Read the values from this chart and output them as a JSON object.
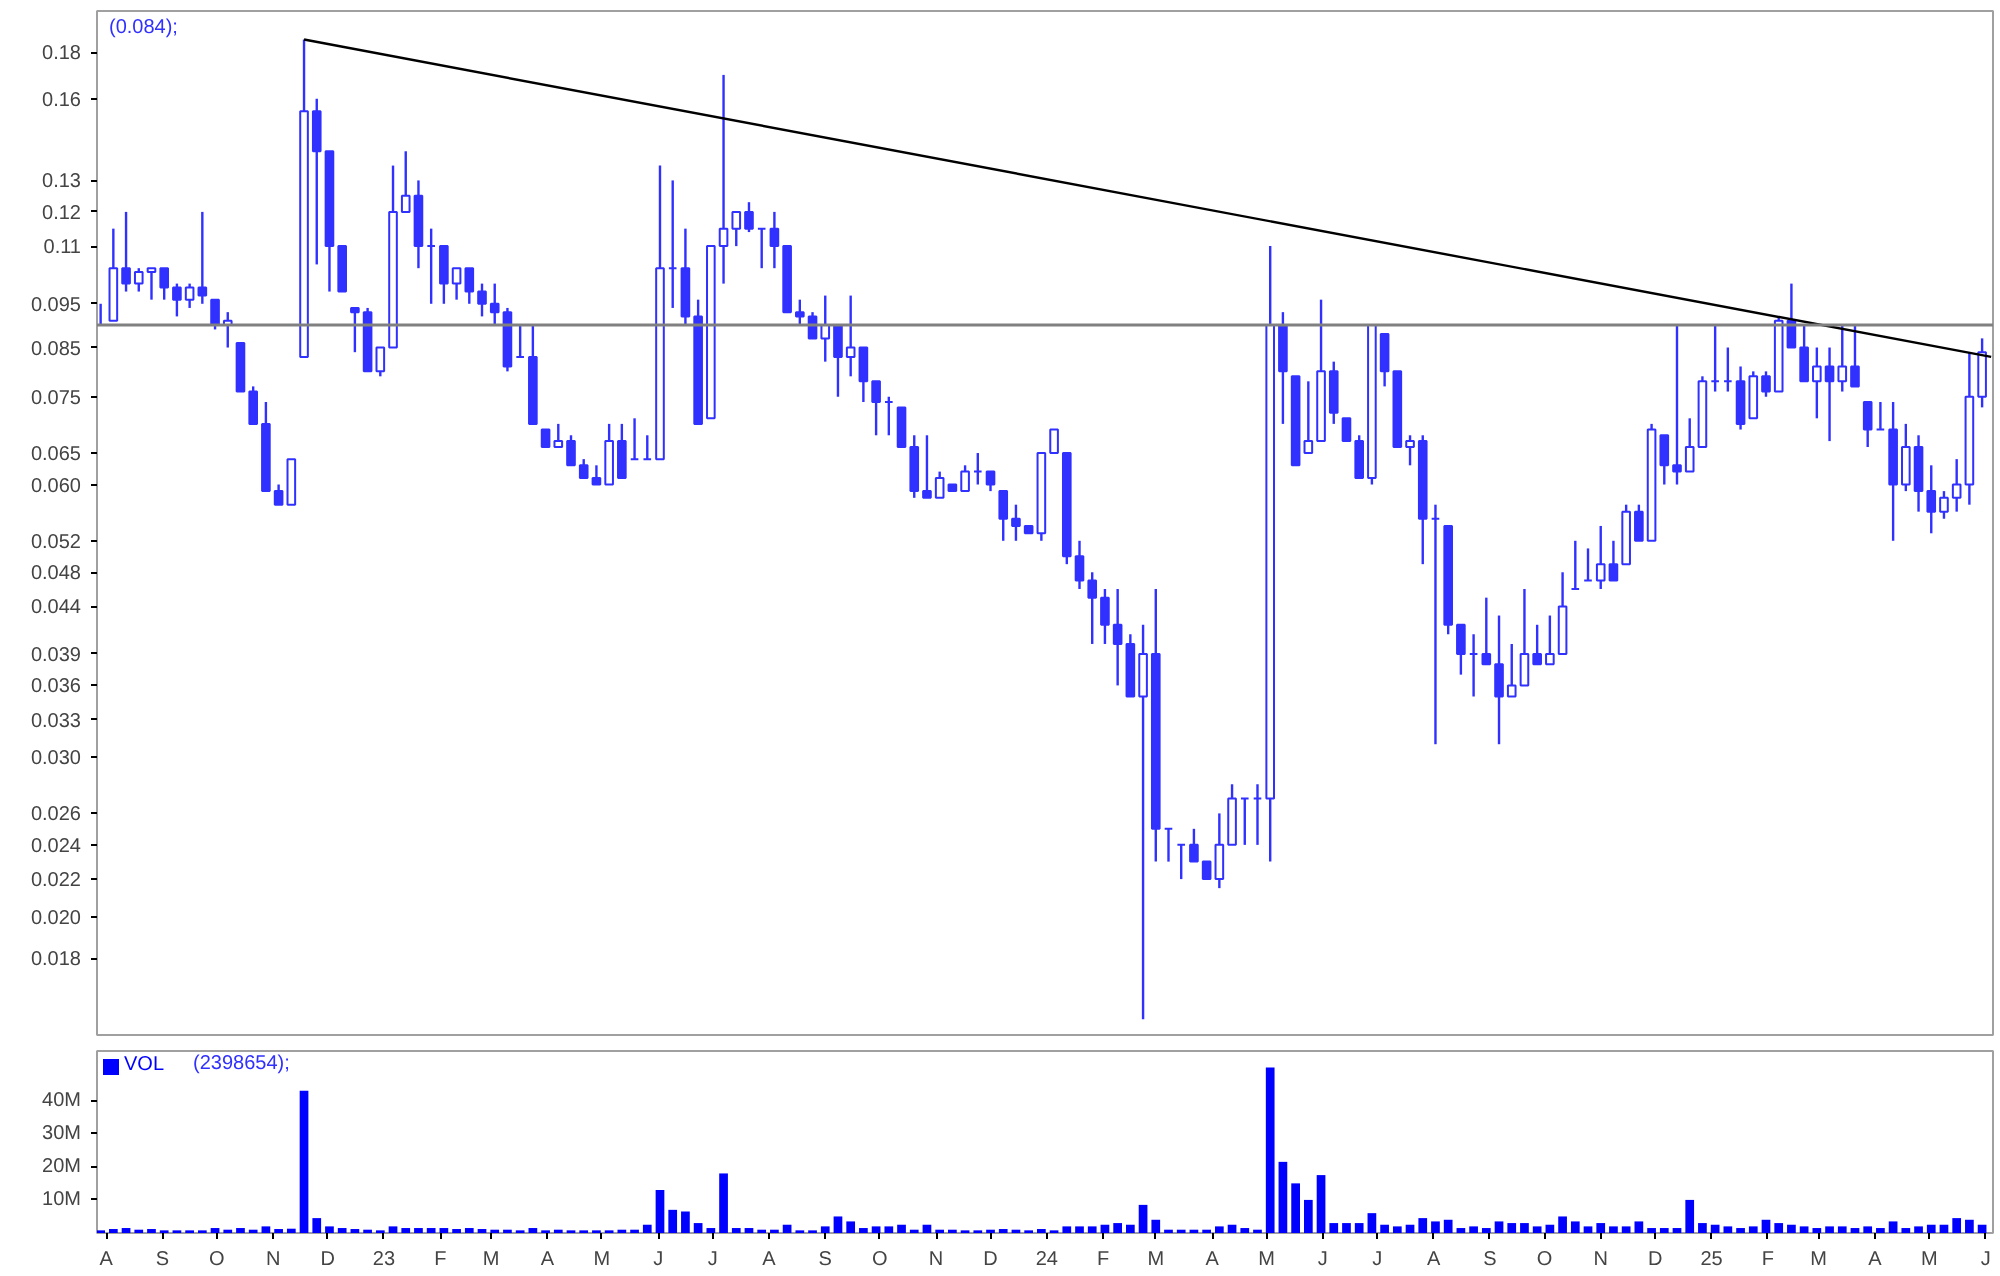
{
  "chart_data": [
    {
      "type": "candlestick",
      "color": "#3030ff",
      "log": "y",
      "tick_labels": "y",
      "annotations": [
        "(0.084);"
      ],
      "x": [
        "2022-07-29",
        "2022-08-05",
        "2022-08-12",
        "2022-08-19",
        "2022-08-26",
        "2022-09-02",
        "2022-09-09",
        "2022-09-16",
        "2022-09-23",
        "2022-09-30",
        "2022-10-07",
        "2022-10-14",
        "2022-10-21",
        "2022-10-28",
        "2022-11-04",
        "2022-11-11",
        "2022-11-18",
        "2022-11-25",
        "2022-12-02",
        "2022-12-09",
        "2022-12-16",
        "2022-12-23",
        "2022-12-30",
        "2023-01-06",
        "2023-01-13",
        "2023-01-20",
        "2023-01-27",
        "2023-02-03",
        "2023-02-10",
        "2023-02-17",
        "2023-02-24",
        "2023-03-03",
        "2023-03-10",
        "2023-03-17",
        "2023-03-24",
        "2023-03-31",
        "2023-04-07",
        "2023-04-14",
        "2023-04-21",
        "2023-04-28",
        "2023-05-05",
        "2023-05-12",
        "2023-05-19",
        "2023-05-26",
        "2023-06-02",
        "2023-06-09",
        "2023-06-16",
        "2023-06-23",
        "2023-06-30",
        "2023-07-07",
        "2023-07-14",
        "2023-07-21",
        "2023-07-28",
        "2023-08-04",
        "2023-08-11",
        "2023-08-18",
        "2023-08-25",
        "2023-09-01",
        "2023-09-08",
        "2023-09-15",
        "2023-09-22",
        "2023-09-29",
        "2023-10-06",
        "2023-10-13",
        "2023-10-20",
        "2023-10-27",
        "2023-11-03",
        "2023-11-10",
        "2023-11-17",
        "2023-11-24",
        "2023-12-01",
        "2023-12-08",
        "2023-12-15",
        "2023-12-22",
        "2023-12-29",
        "2024-01-05",
        "2024-01-12",
        "2024-01-19",
        "2024-01-26",
        "2024-02-02",
        "2024-02-09",
        "2024-02-16",
        "2024-02-23",
        "2024-03-01",
        "2024-03-08",
        "2024-03-15",
        "2024-03-22",
        "2024-03-29",
        "2024-04-05",
        "2024-04-12",
        "2024-04-19",
        "2024-04-26",
        "2024-05-03",
        "2024-05-10",
        "2024-05-17",
        "2024-05-24",
        "2024-05-31",
        "2024-06-07",
        "2024-06-14",
        "2024-06-21",
        "2024-06-28",
        "2024-07-05",
        "2024-07-12",
        "2024-07-19",
        "2024-07-26",
        "2024-08-02",
        "2024-08-09",
        "2024-08-16",
        "2024-08-23",
        "2024-08-30",
        "2024-09-06",
        "2024-09-13",
        "2024-09-20",
        "2024-09-27",
        "2024-10-04",
        "2024-10-11",
        "2024-10-18",
        "2024-10-25",
        "2024-11-01",
        "2024-11-08",
        "2024-11-15",
        "2024-11-22",
        "2024-11-29",
        "2024-12-06",
        "2024-12-13",
        "2024-12-20",
        "2024-12-27",
        "2025-01-03",
        "2025-01-10",
        "2025-01-17",
        "2025-01-24",
        "2025-01-31",
        "2025-02-07",
        "2025-02-14",
        "2025-02-21",
        "2025-02-28",
        "2025-03-07",
        "2025-03-14",
        "2025-03-21",
        "2025-03-28",
        "2025-04-04",
        "2025-04-11",
        "2025-04-18",
        "2025-04-25",
        "2025-05-02",
        "2025-05-09",
        "2025-05-16",
        "2025-05-23",
        "2025-05-30"
      ],
      "ohlc": [
        [
          0.09,
          0.095,
          0.09,
          0.09
        ],
        [
          0.091,
          0.115,
          0.091,
          0.104
        ],
        [
          0.104,
          0.12,
          0.098,
          0.1
        ],
        [
          0.1,
          0.104,
          0.098,
          0.103
        ],
        [
          0.103,
          0.104,
          0.096,
          0.104
        ],
        [
          0.104,
          0.104,
          0.096,
          0.099
        ],
        [
          0.099,
          0.1,
          0.092,
          0.096
        ],
        [
          0.096,
          0.1,
          0.094,
          0.099
        ],
        [
          0.099,
          0.12,
          0.095,
          0.097
        ],
        [
          0.096,
          0.096,
          0.089,
          0.09
        ],
        [
          0.09,
          0.093,
          0.085,
          0.091
        ],
        [
          0.086,
          0.086,
          0.076,
          0.076
        ],
        [
          0.076,
          0.077,
          0.07,
          0.07
        ],
        [
          0.07,
          0.074,
          0.059,
          0.059
        ],
        [
          0.059,
          0.06,
          0.057,
          0.057
        ],
        [
          0.057,
          0.064,
          0.057,
          0.064
        ],
        [
          0.083,
          0.186,
          0.083,
          0.155
        ],
        [
          0.155,
          0.16,
          0.105,
          0.14
        ],
        [
          0.14,
          0.14,
          0.098,
          0.11
        ],
        [
          0.11,
          0.11,
          0.098,
          0.098
        ],
        [
          0.094,
          0.094,
          0.084,
          0.093
        ],
        [
          0.093,
          0.094,
          0.08,
          0.08
        ],
        [
          0.08,
          0.085,
          0.079,
          0.085
        ],
        [
          0.085,
          0.135,
          0.085,
          0.12
        ],
        [
          0.12,
          0.14,
          0.12,
          0.125
        ],
        [
          0.125,
          0.13,
          0.104,
          0.11
        ],
        [
          0.11,
          0.115,
          0.095,
          0.11
        ],
        [
          0.11,
          0.11,
          0.095,
          0.1
        ],
        [
          0.1,
          0.104,
          0.096,
          0.104
        ],
        [
          0.104,
          0.104,
          0.095,
          0.098
        ],
        [
          0.098,
          0.1,
          0.092,
          0.095
        ],
        [
          0.095,
          0.1,
          0.09,
          0.093
        ],
        [
          0.093,
          0.094,
          0.08,
          0.081
        ],
        [
          0.083,
          0.09,
          0.083,
          0.083
        ],
        [
          0.083,
          0.09,
          0.07,
          0.07
        ],
        [
          0.069,
          0.069,
          0.066,
          0.066
        ],
        [
          0.066,
          0.07,
          0.066,
          0.067
        ],
        [
          0.067,
          0.068,
          0.063,
          0.063
        ],
        [
          0.063,
          0.064,
          0.061,
          0.061
        ],
        [
          0.061,
          0.063,
          0.06,
          0.06
        ],
        [
          0.06,
          0.07,
          0.06,
          0.067
        ],
        [
          0.067,
          0.07,
          0.061,
          0.061
        ],
        [
          0.064,
          0.071,
          0.064,
          0.064
        ],
        [
          0.064,
          0.068,
          0.064,
          0.064
        ],
        [
          0.064,
          0.135,
          0.064,
          0.104
        ],
        [
          0.104,
          0.13,
          0.094,
          0.104
        ],
        [
          0.104,
          0.115,
          0.09,
          0.092
        ],
        [
          0.092,
          0.096,
          0.07,
          0.07
        ],
        [
          0.071,
          0.11,
          0.071,
          0.11
        ],
        [
          0.11,
          0.17,
          0.1,
          0.115
        ],
        [
          0.115,
          0.12,
          0.11,
          0.12
        ],
        [
          0.12,
          0.123,
          0.114,
          0.115
        ],
        [
          0.115,
          0.115,
          0.104,
          0.115
        ],
        [
          0.115,
          0.12,
          0.104,
          0.11
        ],
        [
          0.11,
          0.11,
          0.093,
          0.093
        ],
        [
          0.093,
          0.096,
          0.09,
          0.092
        ],
        [
          0.092,
          0.093,
          0.087,
          0.087
        ],
        [
          0.087,
          0.097,
          0.082,
          0.09
        ],
        [
          0.09,
          0.09,
          0.075,
          0.083
        ],
        [
          0.083,
          0.097,
          0.079,
          0.085
        ],
        [
          0.085,
          0.085,
          0.074,
          0.078
        ],
        [
          0.078,
          0.078,
          0.068,
          0.074
        ],
        [
          0.074,
          0.075,
          0.068,
          0.074
        ],
        [
          0.073,
          0.073,
          0.066,
          0.066
        ],
        [
          0.066,
          0.068,
          0.058,
          0.059
        ],
        [
          0.059,
          0.068,
          0.058,
          0.058
        ],
        [
          0.058,
          0.062,
          0.058,
          0.061
        ],
        [
          0.06,
          0.06,
          0.059,
          0.059
        ],
        [
          0.059,
          0.063,
          0.059,
          0.062
        ],
        [
          0.062,
          0.065,
          0.06,
          0.062
        ],
        [
          0.062,
          0.062,
          0.059,
          0.06
        ],
        [
          0.059,
          0.059,
          0.052,
          0.055
        ],
        [
          0.055,
          0.057,
          0.052,
          0.054
        ],
        [
          0.054,
          0.054,
          0.053,
          0.053
        ],
        [
          0.053,
          0.065,
          0.052,
          0.065
        ],
        [
          0.065,
          0.069,
          0.065,
          0.069
        ],
        [
          0.065,
          0.065,
          0.049,
          0.05
        ],
        [
          0.05,
          0.052,
          0.046,
          0.047
        ],
        [
          0.047,
          0.048,
          0.04,
          0.045
        ],
        [
          0.045,
          0.046,
          0.04,
          0.042
        ],
        [
          0.042,
          0.046,
          0.036,
          0.04
        ],
        [
          0.04,
          0.041,
          0.035,
          0.035
        ],
        [
          0.035,
          0.042,
          0.0154,
          0.039
        ],
        [
          0.039,
          0.046,
          0.023,
          0.025
        ],
        [
          0.025,
          0.025,
          0.023,
          0.025
        ],
        [
          0.024,
          0.024,
          0.022,
          0.024
        ],
        [
          0.024,
          0.025,
          0.023,
          0.023
        ],
        [
          0.023,
          0.023,
          0.022,
          0.022
        ],
        [
          0.022,
          0.026,
          0.0215,
          0.024
        ],
        [
          0.024,
          0.028,
          0.024,
          0.027
        ],
        [
          0.027,
          0.027,
          0.024,
          0.027
        ],
        [
          0.027,
          0.028,
          0.024,
          0.027
        ],
        [
          0.027,
          0.11,
          0.023,
          0.09
        ],
        [
          0.09,
          0.093,
          0.07,
          0.08
        ],
        [
          0.079,
          0.079,
          0.063,
          0.063
        ],
        [
          0.065,
          0.078,
          0.065,
          0.067
        ],
        [
          0.067,
          0.096,
          0.067,
          0.08
        ],
        [
          0.08,
          0.082,
          0.07,
          0.072
        ],
        [
          0.071,
          0.071,
          0.067,
          0.067
        ],
        [
          0.067,
          0.068,
          0.061,
          0.061
        ],
        [
          0.061,
          0.09,
          0.06,
          0.09
        ],
        [
          0.088,
          0.088,
          0.077,
          0.08
        ],
        [
          0.08,
          0.08,
          0.066,
          0.066
        ],
        [
          0.066,
          0.068,
          0.063,
          0.067
        ],
        [
          0.067,
          0.068,
          0.049,
          0.055
        ],
        [
          0.055,
          0.057,
          0.031,
          0.055
        ],
        [
          0.054,
          0.054,
          0.041,
          0.042
        ],
        [
          0.042,
          0.042,
          0.037,
          0.039
        ],
        [
          0.039,
          0.041,
          0.035,
          0.039
        ],
        [
          0.039,
          0.045,
          0.038,
          0.038
        ],
        [
          0.038,
          0.043,
          0.031,
          0.035
        ],
        [
          0.035,
          0.04,
          0.035,
          0.036
        ],
        [
          0.036,
          0.046,
          0.036,
          0.039
        ],
        [
          0.039,
          0.042,
          0.038,
          0.038
        ],
        [
          0.038,
          0.043,
          0.038,
          0.039
        ],
        [
          0.039,
          0.048,
          0.039,
          0.044
        ],
        [
          0.046,
          0.052,
          0.046,
          0.046
        ],
        [
          0.047,
          0.051,
          0.047,
          0.047
        ],
        [
          0.047,
          0.054,
          0.046,
          0.049
        ],
        [
          0.049,
          0.052,
          0.047,
          0.047
        ],
        [
          0.049,
          0.057,
          0.049,
          0.056
        ],
        [
          0.056,
          0.057,
          0.052,
          0.052
        ],
        [
          0.052,
          0.07,
          0.052,
          0.069
        ],
        [
          0.068,
          0.068,
          0.06,
          0.063
        ],
        [
          0.063,
          0.09,
          0.06,
          0.062
        ],
        [
          0.062,
          0.071,
          0.062,
          0.066
        ],
        [
          0.066,
          0.079,
          0.066,
          0.078
        ],
        [
          0.078,
          0.09,
          0.076,
          0.078
        ],
        [
          0.078,
          0.085,
          0.076,
          0.078
        ],
        [
          0.078,
          0.081,
          0.069,
          0.07
        ],
        [
          0.071,
          0.08,
          0.071,
          0.079
        ],
        [
          0.079,
          0.08,
          0.075,
          0.076
        ],
        [
          0.076,
          0.092,
          0.076,
          0.091
        ],
        [
          0.091,
          0.1,
          0.085,
          0.085
        ],
        [
          0.085,
          0.09,
          0.078,
          0.078
        ],
        [
          0.078,
          0.085,
          0.071,
          0.081
        ],
        [
          0.081,
          0.085,
          0.067,
          0.078
        ],
        [
          0.078,
          0.09,
          0.076,
          0.081
        ],
        [
          0.081,
          0.09,
          0.077,
          0.077
        ],
        [
          0.074,
          0.074,
          0.066,
          0.069
        ],
        [
          0.069,
          0.074,
          0.069,
          0.069
        ],
        [
          0.069,
          0.074,
          0.052,
          0.06
        ],
        [
          0.06,
          0.07,
          0.059,
          0.066
        ],
        [
          0.066,
          0.068,
          0.056,
          0.059
        ],
        [
          0.059,
          0.063,
          0.053,
          0.056
        ],
        [
          0.056,
          0.059,
          0.055,
          0.058
        ],
        [
          0.058,
          0.064,
          0.056,
          0.06
        ],
        [
          0.06,
          0.084,
          0.057,
          0.075
        ],
        [
          0.075,
          0.087,
          0.073,
          0.084
        ]
      ],
      "series": [
        {
          "type": "line",
          "x": [
            "2022-11-18",
            "2025-06-04"
          ],
          "values": [
            0.186,
            0.083
          ],
          "color": "#000000"
        }
      ],
      "ref_lines": [
        {
          "axis": "y",
          "value": 0.09,
          "color": "#808080"
        }
      ],
      "xlim": [
        "2022-07-27",
        "2025-06-05"
      ],
      "ylim": [
        0.0148,
        0.2
      ],
      "yticks": [
        0.18,
        0.16,
        0.13,
        0.12,
        0.11,
        0.095,
        0.085,
        0.075,
        0.065,
        {
          "value": 0.06,
          "label": "0.060"
        },
        0.052,
        0.048,
        0.044,
        0.039,
        0.036,
        0.033,
        {
          "value": 0.03,
          "label": "0.030"
        },
        0.026,
        0.024,
        0.022,
        {
          "value": 0.02,
          "label": "0.020"
        },
        0.018
      ]
    },
    {
      "type": "bar",
      "legend": "top left",
      "annotations": [
        "(2398654);"
      ],
      "series": [
        {
          "name": "VOL",
          "color": "#0000ff",
          "values": [
            0.8,
            1.2,
            1.5,
            1,
            1.2,
            0.8,
            0.8,
            0.8,
            0.8,
            1.5,
            1,
            1.5,
            1,
            2,
            1.2,
            1.3,
            43,
            4.5,
            2,
            1.5,
            1.2,
            1,
            0.8,
            2,
            1.5,
            1.5,
            1.5,
            1.5,
            1.2,
            1.5,
            1.2,
            1,
            1,
            0.8,
            1.5,
            0.8,
            1,
            0.8,
            0.8,
            0.8,
            0.8,
            1,
            1,
            2.5,
            13,
            7,
            6.5,
            3,
            1.5,
            18,
            1.5,
            1.5,
            1,
            1,
            2.5,
            0.8,
            0.8,
            2,
            5,
            3.5,
            1.5,
            2,
            2,
            2.5,
            1,
            2.5,
            1,
            1,
            0.8,
            0.8,
            1,
            1.2,
            1,
            0.8,
            1.2,
            0.8,
            2,
            2,
            2,
            2.5,
            3,
            2.5,
            8.5,
            4,
            1,
            1,
            1,
            1,
            2,
            2.5,
            1.5,
            1,
            50,
            21.5,
            15,
            10,
            17.5,
            3,
            3,
            3,
            6,
            2.5,
            2,
            2.5,
            4.5,
            3.5,
            4,
            1.5,
            2,
            1.5,
            3.5,
            3,
            3,
            2,
            2.5,
            5,
            3.5,
            2,
            3,
            2,
            2,
            3.5,
            1.5,
            1.5,
            1.5,
            10,
            3,
            2.5,
            2,
            1.5,
            2,
            4,
            3,
            2.5,
            2,
            1.5,
            2,
            2,
            1.5,
            2,
            1.5,
            3.5,
            1.5,
            2,
            2.5,
            2.5,
            4.5,
            4,
            2.5
          ]
        }
      ],
      "x": [
        "2022-07-29",
        "2022-08-05",
        "2022-08-12",
        "2022-08-19",
        "2022-08-26",
        "2022-09-02",
        "2022-09-09",
        "2022-09-16",
        "2022-09-23",
        "2022-09-30",
        "2022-10-07",
        "2022-10-14",
        "2022-10-21",
        "2022-10-28",
        "2022-11-04",
        "2022-11-11",
        "2022-11-18",
        "2022-11-25",
        "2022-12-02",
        "2022-12-09",
        "2022-12-16",
        "2022-12-23",
        "2022-12-30",
        "2023-01-06",
        "2023-01-13",
        "2023-01-20",
        "2023-01-27",
        "2023-02-03",
        "2023-02-10",
        "2023-02-17",
        "2023-02-24",
        "2023-03-03",
        "2023-03-10",
        "2023-03-17",
        "2023-03-24",
        "2023-03-31",
        "2023-04-07",
        "2023-04-14",
        "2023-04-21",
        "2023-04-28",
        "2023-05-05",
        "2023-05-12",
        "2023-05-19",
        "2023-05-26",
        "2023-06-02",
        "2023-06-09",
        "2023-06-16",
        "2023-06-23",
        "2023-06-30",
        "2023-07-07",
        "2023-07-14",
        "2023-07-21",
        "2023-07-28",
        "2023-08-04",
        "2023-08-11",
        "2023-08-18",
        "2023-08-25",
        "2023-09-01",
        "2023-09-08",
        "2023-09-15",
        "2023-09-22",
        "2023-09-29",
        "2023-10-06",
        "2023-10-13",
        "2023-10-20",
        "2023-10-27",
        "2023-11-03",
        "2023-11-10",
        "2023-11-17",
        "2023-11-24",
        "2023-12-01",
        "2023-12-08",
        "2023-12-15",
        "2023-12-22",
        "2023-12-29",
        "2024-01-05",
        "2024-01-12",
        "2024-01-19",
        "2024-01-26",
        "2024-02-02",
        "2024-02-09",
        "2024-02-16",
        "2024-02-23",
        "2024-03-01",
        "2024-03-08",
        "2024-03-15",
        "2024-03-22",
        "2024-03-29",
        "2024-04-05",
        "2024-04-12",
        "2024-04-19",
        "2024-04-26",
        "2024-05-03",
        "2024-05-10",
        "2024-05-17",
        "2024-05-24",
        "2024-05-31",
        "2024-06-07",
        "2024-06-14",
        "2024-06-21",
        "2024-06-28",
        "2024-07-05",
        "2024-07-12",
        "2024-07-19",
        "2024-07-26",
        "2024-08-02",
        "2024-08-09",
        "2024-08-16",
        "2024-08-23",
        "2024-08-30",
        "2024-09-06",
        "2024-09-13",
        "2024-09-20",
        "2024-09-27",
        "2024-10-04",
        "2024-10-11",
        "2024-10-18",
        "2024-10-25",
        "2024-11-01",
        "2024-11-08",
        "2024-11-15",
        "2024-11-22",
        "2024-11-29",
        "2024-12-06",
        "2024-12-13",
        "2024-12-20",
        "2024-12-27",
        "2025-01-03",
        "2025-01-10",
        "2025-01-17",
        "2025-01-24",
        "2025-01-31",
        "2025-02-07",
        "2025-02-14",
        "2025-02-21",
        "2025-02-28",
        "2025-03-07",
        "2025-03-14",
        "2025-03-21",
        "2025-03-28",
        "2025-04-04",
        "2025-04-11",
        "2025-04-18",
        "2025-04-25",
        "2025-05-02",
        "2025-05-09",
        "2025-05-16",
        "2025-05-23",
        "2025-05-30"
      ],
      "xlim": [
        "2022-07-27",
        "2025-06-05"
      ],
      "xticks": [
        {
          "value": "2022-08-01",
          "label": "A"
        },
        {
          "value": "2022-09-01",
          "label": "S"
        },
        {
          "value": "2022-10-01",
          "label": "O"
        },
        {
          "value": "2022-11-01",
          "label": "N"
        },
        {
          "value": "2022-12-01",
          "label": "D"
        },
        {
          "value": "2023-01-01",
          "label": "23"
        },
        {
          "value": "2023-02-01",
          "label": "F"
        },
        {
          "value": "2023-03-01",
          "label": "M"
        },
        {
          "value": "2023-04-01",
          "label": "A"
        },
        {
          "value": "2023-05-01",
          "label": "M"
        },
        {
          "value": "2023-06-01",
          "label": "J"
        },
        {
          "value": "2023-07-01",
          "label": "J"
        },
        {
          "value": "2023-08-01",
          "label": "A"
        },
        {
          "value": "2023-09-01",
          "label": "S"
        },
        {
          "value": "2023-10-01",
          "label": "O"
        },
        {
          "value": "2023-11-01",
          "label": "N"
        },
        {
          "value": "2023-12-01",
          "label": "D"
        },
        {
          "value": "2024-01-01",
          "label": "24"
        },
        {
          "value": "2024-02-01",
          "label": "F"
        },
        {
          "value": "2024-03-01",
          "label": "M"
        },
        {
          "value": "2024-04-01",
          "label": "A"
        },
        {
          "value": "2024-05-01",
          "label": "M"
        },
        {
          "value": "2024-06-01",
          "label": "J"
        },
        {
          "value": "2024-07-01",
          "label": "J"
        },
        {
          "value": "2024-08-01",
          "label": "A"
        },
        {
          "value": "2024-09-01",
          "label": "S"
        },
        {
          "value": "2024-10-01",
          "label": "O"
        },
        {
          "value": "2024-11-01",
          "label": "N"
        },
        {
          "value": "2024-12-01",
          "label": "D"
        },
        {
          "value": "2025-01-01",
          "label": "25"
        },
        {
          "value": "2025-02-01",
          "label": "F"
        },
        {
          "value": "2025-03-01",
          "label": "M"
        },
        {
          "value": "2025-04-01",
          "label": "A"
        },
        {
          "value": "2025-05-01",
          "label": "M"
        },
        {
          "value": "2025-06-01",
          "label": "J"
        }
      ],
      "ylim": [
        0,
        55
      ],
      "yticks": [
        {
          "value": 10,
          "label": "10M"
        },
        {
          "value": 20,
          "label": "20M"
        },
        {
          "value": 30,
          "label": "30M"
        },
        {
          "value": 40,
          "label": "40M"
        }
      ]
    }
  ]
}
